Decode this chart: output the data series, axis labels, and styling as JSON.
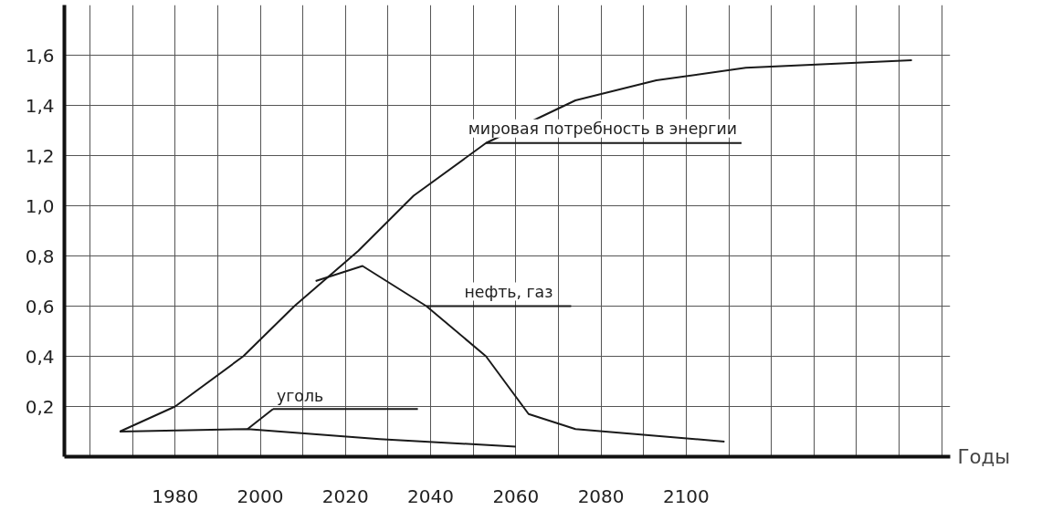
{
  "chart_data": {
    "type": "line",
    "xlabel": "Годы",
    "xlim": [
      1954,
      2162
    ],
    "ylim": [
      0,
      1.8
    ],
    "xticks": [
      {
        "value": 1960,
        "label": null
      },
      {
        "value": 1970,
        "label": null
      },
      1980,
      {
        "value": 1990,
        "label": null
      },
      2000,
      {
        "value": 2010,
        "label": null
      },
      2020,
      {
        "value": 2030,
        "label": null
      },
      2040,
      {
        "value": 2050,
        "label": null
      },
      2060,
      {
        "value": 2070,
        "label": null
      },
      2080,
      {
        "value": 2090,
        "label": null
      },
      2100,
      {
        "value": 2110,
        "label": null
      },
      {
        "value": 2120,
        "label": null
      },
      {
        "value": 2130,
        "label": null
      },
      {
        "value": 2140,
        "label": null
      },
      {
        "value": 2150,
        "label": null
      },
      {
        "value": 2160,
        "label": null
      }
    ],
    "yticks": [
      {
        "value": 0.2,
        "label": "0,2"
      },
      {
        "value": 0.4,
        "label": "0,4"
      },
      {
        "value": 0.6,
        "label": "0,6"
      },
      {
        "value": 0.8,
        "label": "0,8"
      },
      {
        "value": 1.0,
        "label": "1,0"
      },
      {
        "value": 1.2,
        "label": "1,2"
      },
      {
        "value": 1.4,
        "label": "1,4"
      },
      {
        "value": 1.6,
        "label": "1,6"
      }
    ],
    "grid": true,
    "marker": "none",
    "line_style": "solid",
    "series": [
      {
        "color": "#1a1a1a",
        "x": [
          1967,
          1980,
          1996,
          2008,
          2023,
          2036,
          2053,
          2074,
          2093,
          2114,
          2153
        ],
        "values": [
          0.1,
          0.2,
          0.4,
          0.6,
          0.82,
          1.04,
          1.25,
          1.42,
          1.5,
          1.55,
          1.58
        ]
      },
      {
        "color": "#1a1a1a",
        "x": [
          2013,
          2024,
          2039,
          2053,
          2063,
          2074,
          2109
        ],
        "values": [
          0.7,
          0.76,
          0.6,
          0.4,
          0.17,
          0.11,
          0.06
        ]
      },
      {
        "color": "#1a1a1a",
        "x": [
          1967,
          1997,
          2028,
          2060
        ],
        "values": [
          0.1,
          0.11,
          0.07,
          0.04
        ]
      }
    ],
    "annotations": [
      {
        "text": "мировая потребность в энергии",
        "x": 2053,
        "y": 1.25
      },
      {
        "text": "нефть, газ",
        "x": 2039,
        "y": 0.6
      },
      {
        "text": "уголь",
        "x": 1997,
        "y": 0.11
      }
    ]
  }
}
